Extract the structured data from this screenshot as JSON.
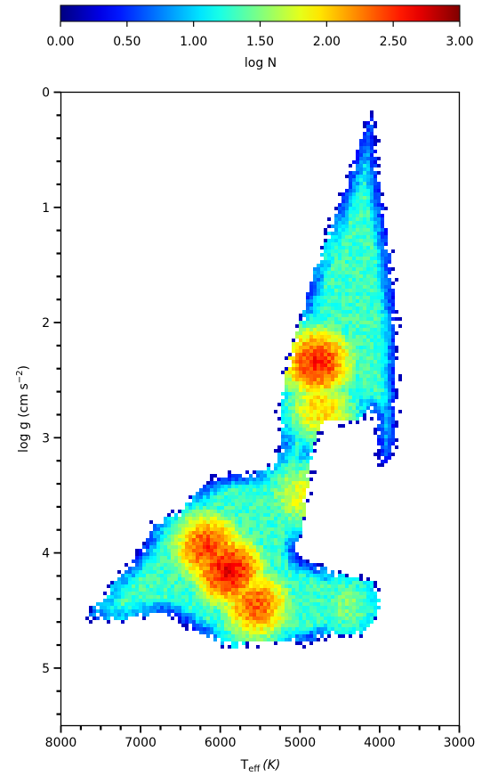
{
  "chart_data": {
    "type": "heatmap",
    "title": "",
    "colorbar": {
      "label": "log N",
      "range": [
        0,
        3
      ],
      "colormap": "jet",
      "orientation": "horizontal",
      "position": "top",
      "ticks": [
        0,
        0.5,
        1,
        1.5,
        2,
        2.5,
        3
      ],
      "tick_labels": [
        "0.00",
        "0.50",
        "1.00",
        "1.50",
        "2.00",
        "2.50",
        "3.00"
      ]
    },
    "xaxis": {
      "label_main": "T",
      "label_sub": "eff",
      "label_unit": "(K)",
      "range": [
        8000,
        3000
      ],
      "inverted": true,
      "ticks": [
        8000,
        7000,
        6000,
        5000,
        4000,
        3000
      ],
      "tick_labels": [
        "8000",
        "7000",
        "6000",
        "5000",
        "4000",
        "3000"
      ]
    },
    "yaxis": {
      "label_text": "log g (cm s",
      "label_sup": "−2",
      "label_close": ")",
      "range": [
        0,
        5.5
      ],
      "inverted": true,
      "ticks": [
        0,
        1,
        2,
        3,
        4,
        5
      ],
      "tick_labels": [
        "0",
        "1",
        "2",
        "3",
        "4",
        "5"
      ]
    },
    "grid": false,
    "features": [
      {
        "teff": 5900,
        "logg": 4.15,
        "log_n": 2.65
      },
      {
        "teff": 6150,
        "logg": 3.95,
        "log_n": 2.45
      },
      {
        "teff": 5550,
        "logg": 4.45,
        "log_n": 2.35
      },
      {
        "teff": 4780,
        "logg": 2.35,
        "log_n": 2.55
      },
      {
        "teff": 4730,
        "logg": 2.75,
        "log_n": 2.0
      },
      {
        "teff": 5000,
        "logg": 3.5,
        "log_n": 1.8
      },
      {
        "teff": 4400,
        "logg": 4.45,
        "log_n": 1.5
      },
      {
        "teff": 4500,
        "logg": 1.4,
        "log_n": 1.2
      },
      {
        "teff": 7200,
        "logg": 4.4,
        "log_n": 1.1
      }
    ]
  }
}
